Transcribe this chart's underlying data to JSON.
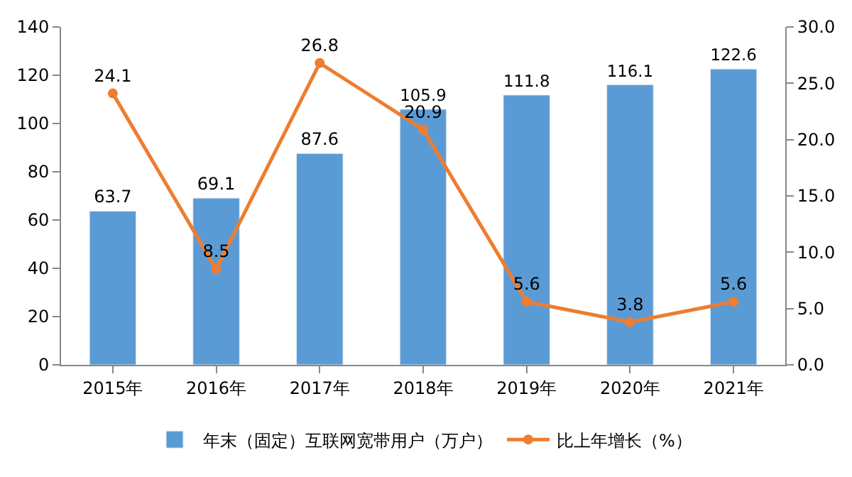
{
  "chart_data": {
    "type": "bar",
    "categories": [
      "2015年",
      "2016年",
      "2017年",
      "2018年",
      "2019年",
      "2020年",
      "2021年"
    ],
    "series": [
      {
        "name": "年末（固定）互联网宽带用户（万户）",
        "color": "#5b9bd5",
        "values": [
          63.7,
          69.1,
          87.6,
          105.9,
          111.8,
          116.1,
          122.6
        ]
      },
      {
        "name": "比上年增长（%）",
        "type": "line",
        "axis": "y2",
        "color": "#ed7d31",
        "marker": "circle",
        "values": [
          24.1,
          8.5,
          26.8,
          20.9,
          5.6,
          3.8,
          5.6
        ]
      }
    ],
    "ylim": [
      0,
      140
    ],
    "yticks": [
      0,
      20,
      40,
      60,
      80,
      100,
      120,
      140
    ],
    "y2lim": [
      0,
      30
    ],
    "y2ticks": [
      {
        "value": 0,
        "label": "0.0"
      },
      {
        "value": 5,
        "label": "5.0"
      },
      {
        "value": 10,
        "label": "10.0"
      },
      {
        "value": 15,
        "label": "15.0"
      },
      {
        "value": 20,
        "label": "20.0"
      },
      {
        "value": 25,
        "label": "25.0"
      },
      {
        "value": 30,
        "label": "30.0"
      }
    ],
    "data_labels": true,
    "legend": "bottom"
  }
}
